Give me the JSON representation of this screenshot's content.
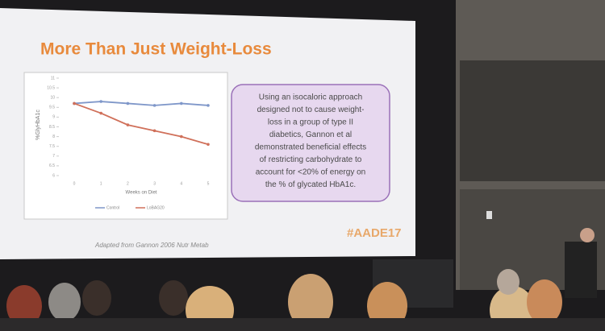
{
  "slide": {
    "title": "More Than Just Weight-Loss",
    "chart": {
      "type": "line",
      "y_label": "%GlyHbA1c",
      "x_label": "Weeks on Diet",
      "x": [
        0,
        1,
        2,
        3,
        4,
        5
      ],
      "xlim": [
        0,
        5
      ],
      "ylim": [
        6,
        11
      ],
      "yticks": [
        6,
        6.5,
        7,
        7.5,
        8,
        8.5,
        9,
        9.5,
        10,
        10.5,
        11
      ],
      "series": [
        {
          "name": "Control",
          "color": "#7f97c9",
          "values": [
            9.7,
            9.8,
            9.7,
            9.6,
            9.7,
            9.6
          ]
        },
        {
          "name": "LoBAG20",
          "color": "#d0705a",
          "values": [
            9.7,
            9.2,
            8.6,
            8.3,
            8.0,
            7.6
          ]
        }
      ]
    },
    "text_box": {
      "lines": [
        "Using an isocaloric approach",
        "designed not to cause weight-",
        "loss in a group of type II",
        "diabetics, Gannon et al",
        "demonstrated beneficial effects",
        "of restricting carbohydrate to",
        "account for <20% of energy on",
        "the % of glycated HbA1c."
      ]
    },
    "source": "Adapted from Gannon 2006 Nutr Metab",
    "hashtag": "#AADE17"
  }
}
